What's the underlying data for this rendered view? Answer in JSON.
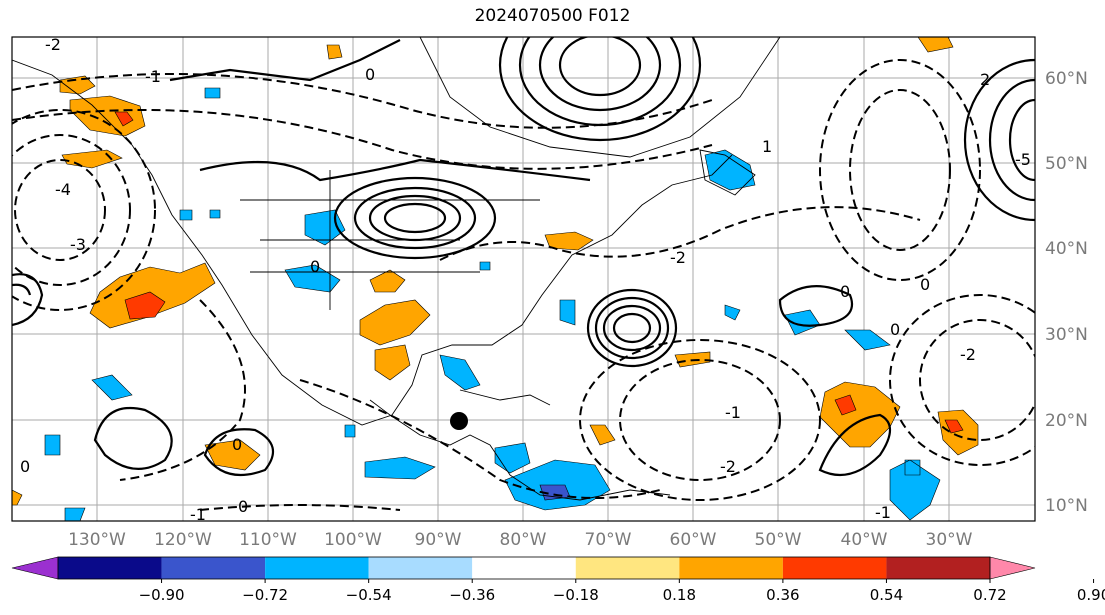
{
  "title": "2024070500 F012",
  "map": {
    "lon_labels": [
      "130°W",
      "120°W",
      "110°W",
      "100°W",
      "90°W",
      "80°W",
      "70°W",
      "60°W",
      "50°W",
      "40°W",
      "30°W"
    ],
    "lat_labels": [
      "60°N",
      "50°N",
      "40°N",
      "30°N",
      "20°N",
      "10°N"
    ],
    "contour_labels": [
      "2",
      "1",
      "0",
      "-1",
      "-2",
      "-3",
      "-4",
      "-5"
    ]
  },
  "colorbar": {
    "ticks": [
      "−0.90",
      "−0.72",
      "−0.54",
      "−0.36",
      "−0.18",
      "0.18",
      "0.36",
      "0.54",
      "0.72",
      "0.90"
    ],
    "colors": [
      "#9b30d0",
      "#0a0a8a",
      "#3a55cc",
      "#00b4ff",
      "#a8dcff",
      "#ffffff",
      "#ffe680",
      "#ffa500",
      "#ff3a00",
      "#b22020",
      "#ff88aa"
    ]
  }
}
